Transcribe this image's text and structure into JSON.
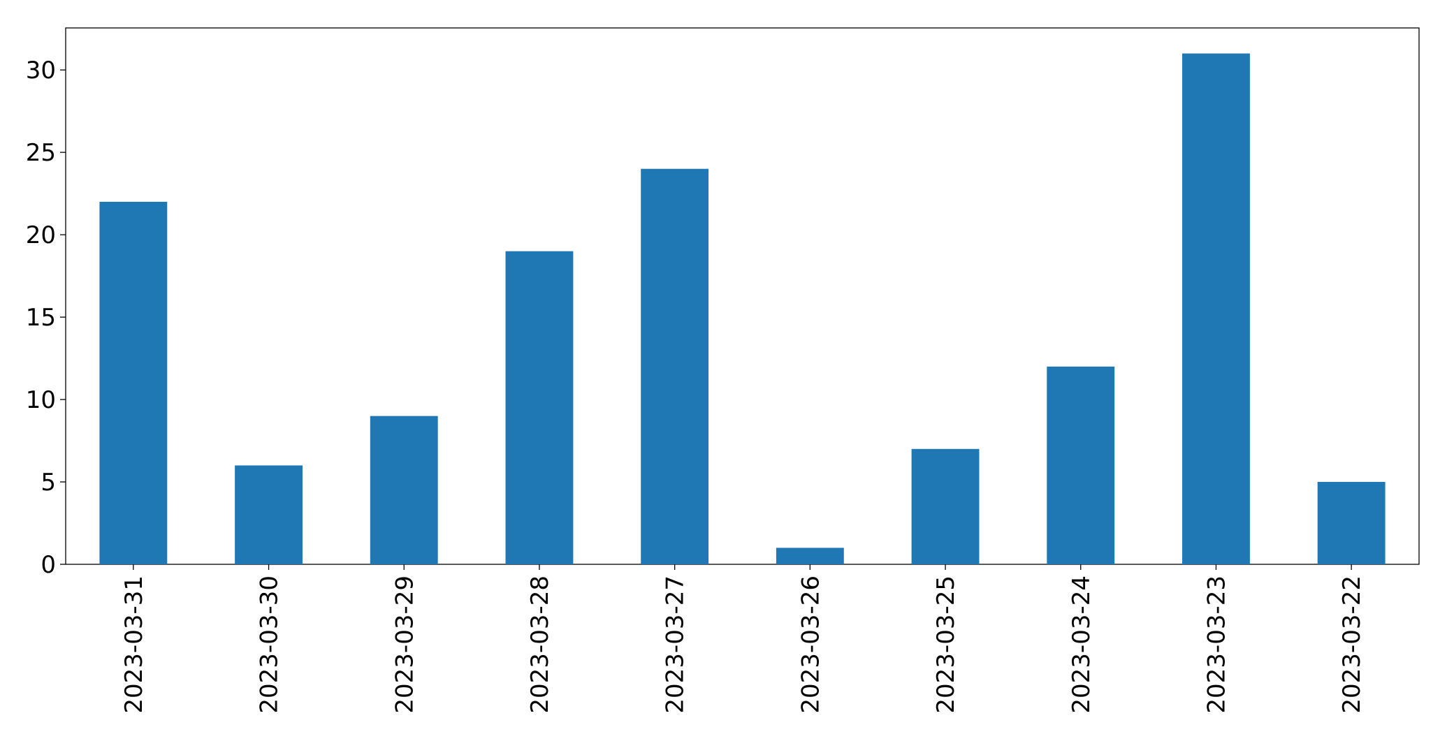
{
  "chart_data": {
    "type": "bar",
    "categories": [
      "2023-03-31",
      "2023-03-30",
      "2023-03-29",
      "2023-03-28",
      "2023-03-27",
      "2023-03-26",
      "2023-03-25",
      "2023-03-24",
      "2023-03-23",
      "2023-03-22"
    ],
    "values": [
      22,
      6,
      9,
      19,
      24,
      1,
      7,
      12,
      31,
      5
    ],
    "color": "#1f77b4",
    "ylim": [
      0,
      32.55
    ],
    "yticks": [
      0,
      5,
      10,
      15,
      20,
      25,
      30
    ],
    "grid": false
  }
}
